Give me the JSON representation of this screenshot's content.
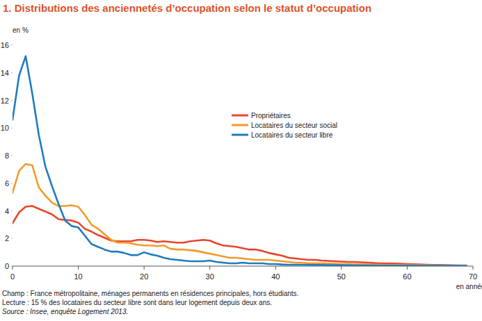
{
  "chart_data": {
    "type": "line",
    "title": "1. Distributions des anciennetés d’occupation selon le statut d’occupation",
    "y_label": "en %",
    "x_label": "en années",
    "notes": [
      "Champ : France métropolitaine, ménages permanents en résidences principales, hors étudiants.",
      "Lecture : 15 % des locataires du secteur libre sont dans leur logement depuis deux ans.",
      "Source : Insee, enquête Logement 2013."
    ],
    "x": [
      0,
      1,
      2,
      3,
      4,
      5,
      6,
      7,
      8,
      9,
      10,
      11,
      12,
      13,
      14,
      15,
      16,
      17,
      18,
      19,
      20,
      21,
      22,
      23,
      24,
      25,
      26,
      27,
      28,
      29,
      30,
      31,
      32,
      33,
      34,
      35,
      36,
      37,
      38,
      39,
      40,
      41,
      42,
      43,
      44,
      45,
      46,
      47,
      48,
      49,
      50,
      51,
      52,
      53,
      54,
      55,
      56,
      57,
      58,
      59,
      60,
      61,
      62,
      63,
      64,
      65,
      66,
      67,
      68,
      69
    ],
    "series": [
      {
        "name": "Propriétaires",
        "color": "#e8452c",
        "values": [
          3.1,
          3.9,
          4.3,
          4.35,
          4.15,
          3.95,
          3.75,
          3.4,
          3.35,
          3.3,
          3.15,
          2.7,
          2.5,
          2.25,
          2.05,
          1.85,
          1.8,
          1.8,
          1.8,
          1.9,
          1.9,
          1.85,
          1.75,
          1.8,
          1.75,
          1.7,
          1.7,
          1.8,
          1.85,
          1.9,
          1.85,
          1.65,
          1.5,
          1.45,
          1.4,
          1.3,
          1.2,
          1.2,
          1.1,
          0.95,
          0.85,
          0.75,
          0.6,
          0.55,
          0.5,
          0.45,
          0.45,
          0.4,
          0.38,
          0.35,
          0.33,
          0.3,
          0.3,
          0.28,
          0.25,
          0.22,
          0.2,
          0.2,
          0.18,
          0.17,
          0.15,
          0.14,
          0.12,
          0.1,
          0.09,
          0.08,
          0.07,
          0.06,
          0.05,
          0.05
        ]
      },
      {
        "name": "Locataires du secteur social",
        "color": "#f39a2a",
        "values": [
          5.3,
          6.9,
          7.4,
          7.3,
          5.7,
          5.1,
          4.6,
          4.35,
          4.35,
          4.4,
          4.3,
          3.7,
          3.0,
          2.7,
          2.3,
          1.9,
          1.7,
          1.7,
          1.65,
          1.55,
          1.5,
          1.5,
          1.45,
          1.5,
          1.25,
          1.2,
          1.2,
          1.15,
          1.1,
          1.0,
          0.9,
          0.8,
          0.7,
          0.6,
          0.6,
          0.55,
          0.5,
          0.45,
          0.45,
          0.45,
          0.4,
          0.35,
          0.3,
          0.25,
          0.25,
          0.2,
          0.2,
          0.2,
          0.18,
          0.17,
          0.15,
          0.15,
          0.13,
          0.12,
          0.11,
          0.1,
          0.1,
          0.09,
          0.08,
          0.08,
          0.07,
          0.07,
          0.06,
          0.06,
          0.05,
          0.05,
          0.05,
          0.04,
          0.04,
          0.04
        ]
      },
      {
        "name": "Locataires du secteur libre",
        "color": "#1f7bc0",
        "values": [
          10.6,
          13.8,
          15.2,
          12.5,
          9.5,
          7.2,
          5.8,
          4.5,
          3.3,
          2.9,
          2.8,
          2.2,
          1.6,
          1.4,
          1.2,
          1.05,
          1.05,
          0.95,
          0.8,
          0.8,
          1.0,
          0.85,
          0.75,
          0.6,
          0.5,
          0.45,
          0.4,
          0.35,
          0.35,
          0.35,
          0.4,
          0.3,
          0.25,
          0.2,
          0.2,
          0.25,
          0.2,
          0.2,
          0.2,
          0.15,
          0.15,
          0.12,
          0.1,
          0.1,
          0.1,
          0.09,
          0.08,
          0.08,
          0.07,
          0.07,
          0.06,
          0.06,
          0.05,
          0.05,
          0.05,
          0.04,
          0.04,
          0.04,
          0.03,
          0.03,
          0.03,
          0.03,
          0.02,
          0.02,
          0.02,
          0.02,
          0.02,
          0.02,
          0.02,
          0.02
        ]
      }
    ],
    "xlim": [
      0,
      70
    ],
    "xticks": [
      0,
      10,
      20,
      30,
      40,
      50,
      60,
      70
    ],
    "ylim": [
      0,
      16
    ],
    "yticks": [
      0,
      2,
      4,
      6,
      8,
      10,
      12,
      14,
      16
    ],
    "grid": false,
    "legend": "center"
  }
}
